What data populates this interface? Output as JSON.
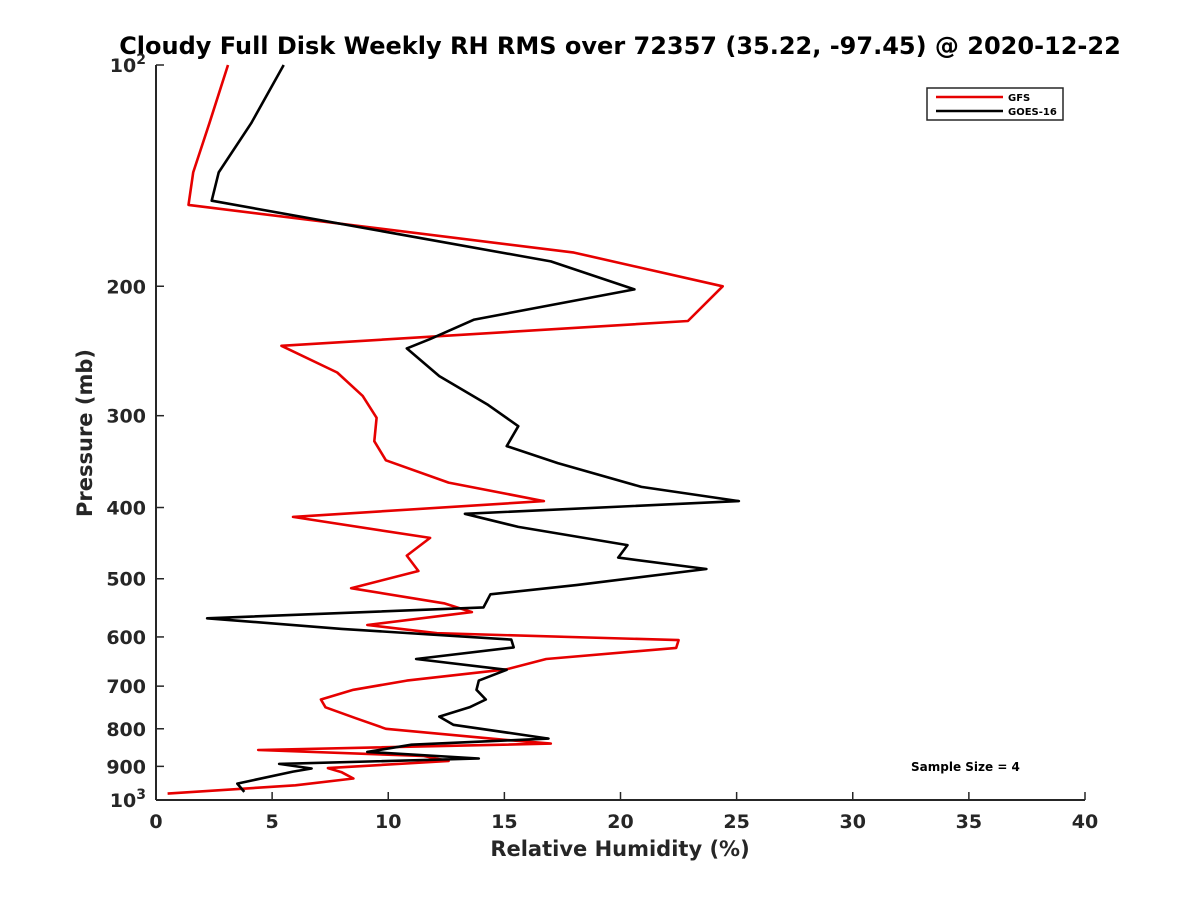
{
  "chart_data": {
    "type": "line",
    "title": "Cloudy Full Disk Weekly RH RMS over 72357 (35.22, -97.45) @ 2020-12-22",
    "xlabel": "Relative Humidity (%)",
    "ylabel": "Pressure (mb)",
    "xlim": [
      0,
      40
    ],
    "ylim": [
      100,
      1000
    ],
    "yscale": "log",
    "y_reversed": true,
    "grid": false,
    "xticks": [
      "0",
      "5",
      "10",
      "15",
      "20",
      "25",
      "30",
      "35",
      "40"
    ],
    "yticks": [
      {
        "value": 100,
        "base": "10",
        "exp": "2"
      },
      {
        "value": 200,
        "label": "200"
      },
      {
        "value": 300,
        "label": "300"
      },
      {
        "value": 400,
        "label": "400"
      },
      {
        "value": 500,
        "label": "500"
      },
      {
        "value": 600,
        "label": "600"
      },
      {
        "value": 700,
        "label": "700"
      },
      {
        "value": 800,
        "label": "800"
      },
      {
        "value": 900,
        "label": "900"
      },
      {
        "value": 1000,
        "base": "10",
        "exp": "3"
      }
    ],
    "legend": "top-right",
    "annotation": "Sample Size = 4",
    "series": [
      {
        "name": "GFS",
        "color": "#e60000",
        "x": [
          3.1,
          2.3,
          1.6,
          1.4,
          18.0,
          24.4,
          22.9,
          5.4,
          7.8,
          8.9,
          9.5,
          9.4,
          9.9,
          12.6,
          16.7,
          5.9,
          11.8,
          10.8,
          11.3,
          8.4,
          12.4,
          13.6,
          9.1,
          12.1,
          22.5,
          22.4,
          16.8,
          15.1,
          10.8,
          8.5,
          7.1,
          7.3,
          8.6,
          9.9,
          15.0,
          17.0,
          4.4,
          11.5,
          12.6,
          7.4,
          8.0,
          8.5,
          6.0,
          0.5
        ],
        "y": [
          100,
          120,
          140,
          155,
          180,
          200,
          223,
          241,
          262,
          282,
          302,
          325,
          345,
          370,
          392,
          412,
          440,
          465,
          488,
          515,
          540,
          555,
          578,
          593,
          606,
          621,
          643,
          664,
          688,
          708,
          730,
          748,
          774,
          800,
          828,
          838,
          855,
          871,
          885,
          905,
          917,
          935,
          955,
          980
        ]
      },
      {
        "name": "GOES-16",
        "color": "#000000",
        "x": [
          5.5,
          4.1,
          2.7,
          2.4,
          17.0,
          20.6,
          13.7,
          11.8,
          10.8,
          12.2,
          14.3,
          15.6,
          15.1,
          17.3,
          20.9,
          25.1,
          13.3,
          15.6,
          20.3,
          19.9,
          23.7,
          18.1,
          14.4,
          14.1,
          2.2,
          8.0,
          15.3,
          15.4,
          11.2,
          15.1,
          13.9,
          13.8,
          14.2,
          13.5,
          12.2,
          12.8,
          16.9,
          11.0,
          9.1,
          13.9,
          5.3,
          6.7,
          5.9,
          3.5,
          3.8
        ],
        "y": [
          100,
          120,
          140,
          153,
          185,
          202,
          222,
          236,
          243,
          265,
          290,
          310,
          330,
          348,
          375,
          392,
          408,
          425,
          450,
          468,
          485,
          510,
          525,
          547,
          566,
          585,
          605,
          620,
          643,
          665,
          688,
          708,
          730,
          748,
          770,
          790,
          825,
          841,
          860,
          878,
          893,
          906,
          915,
          950,
          975
        ]
      }
    ]
  }
}
